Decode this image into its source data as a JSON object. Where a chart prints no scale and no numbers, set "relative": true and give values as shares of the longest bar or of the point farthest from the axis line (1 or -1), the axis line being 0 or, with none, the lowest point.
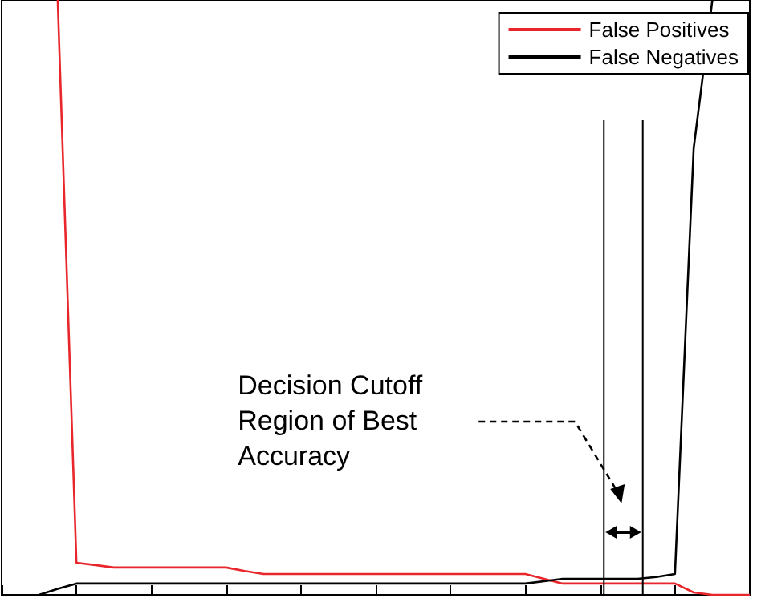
{
  "chart_data": {
    "type": "line",
    "relative": true,
    "categories": [
      null,
      null,
      null,
      null,
      null,
      null,
      null,
      null,
      null,
      null,
      null,
      null,
      null,
      null,
      null,
      null,
      null,
      null,
      null,
      null,
      null,
      null,
      null,
      null,
      null,
      null,
      null,
      null,
      null,
      null,
      null,
      null,
      null,
      null,
      null,
      null,
      null,
      null,
      null,
      null,
      null
    ],
    "tick_labels": false,
    "legend": "top right",
    "series": [
      {
        "name": "False Positives",
        "color": "#e8262b",
        "values": [
          null,
          null,
          null,
          1,
          0.054,
          0.05,
          0.046,
          0.046,
          0.046,
          0.046,
          0.046,
          0.046,
          0.046,
          0.04,
          0.035,
          0.035,
          0.035,
          0.035,
          0.035,
          0.035,
          0.035,
          0.035,
          0.035,
          0.035,
          0.035,
          0.035,
          0.035,
          0.035,
          0.035,
          0.027,
          0.019,
          0.019,
          0.019,
          0.019,
          0.019,
          0.019,
          0.019,
          0.004,
          0,
          0,
          0
        ]
      },
      {
        "name": "False Negatives",
        "color": "#000000",
        "values": [
          null,
          null,
          0,
          0.01,
          0.019,
          0.019,
          0.019,
          0.019,
          0.019,
          0.019,
          0.019,
          0.019,
          0.019,
          0.019,
          0.019,
          0.019,
          0.019,
          0.019,
          0.019,
          0.019,
          0.019,
          0.019,
          0.019,
          0.019,
          0.019,
          0.019,
          0.019,
          0.019,
          0.019,
          0.023,
          0.027,
          0.027,
          0.027,
          0.027,
          0.027,
          0.03,
          0.035,
          0.75,
          1,
          null,
          null
        ]
      }
    ],
    "annotations": [
      "Decision Cutoff Region of Best Accuracy"
    ]
  }
}
